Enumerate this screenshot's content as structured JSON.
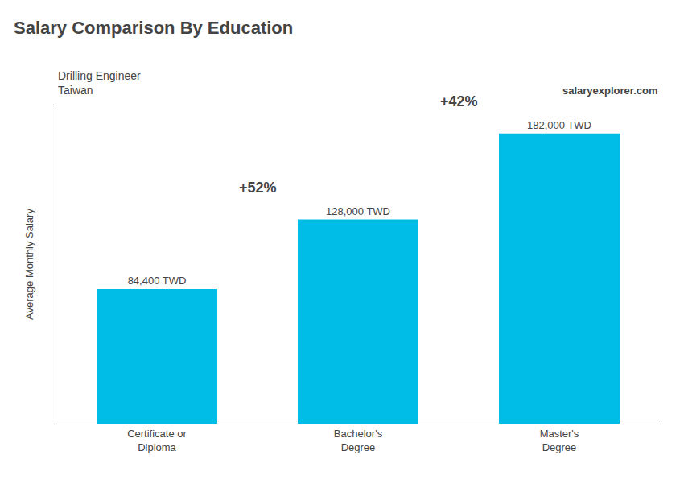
{
  "chart_data": {
    "type": "bar",
    "title": "Salary Comparison By Education",
    "subtitle": [
      "Drilling Engineer",
      "Taiwan"
    ],
    "source": "salaryexplorer.com",
    "ylabel": "Average Monthly Salary",
    "categories": [
      "Certificate or\nDiploma",
      "Bachelor's\nDegree",
      "Master's\nDegree"
    ],
    "values": [
      84400,
      128000,
      182000
    ],
    "value_labels": [
      "84,400 TWD",
      "128,000 TWD",
      "182,000 TWD"
    ],
    "data_labels": true,
    "annotations": [
      "+52%",
      "+42%"
    ],
    "color": "#00bde8",
    "ylim": [
      0,
      200000
    ],
    "tick_labels": "x",
    "grid": false
  }
}
